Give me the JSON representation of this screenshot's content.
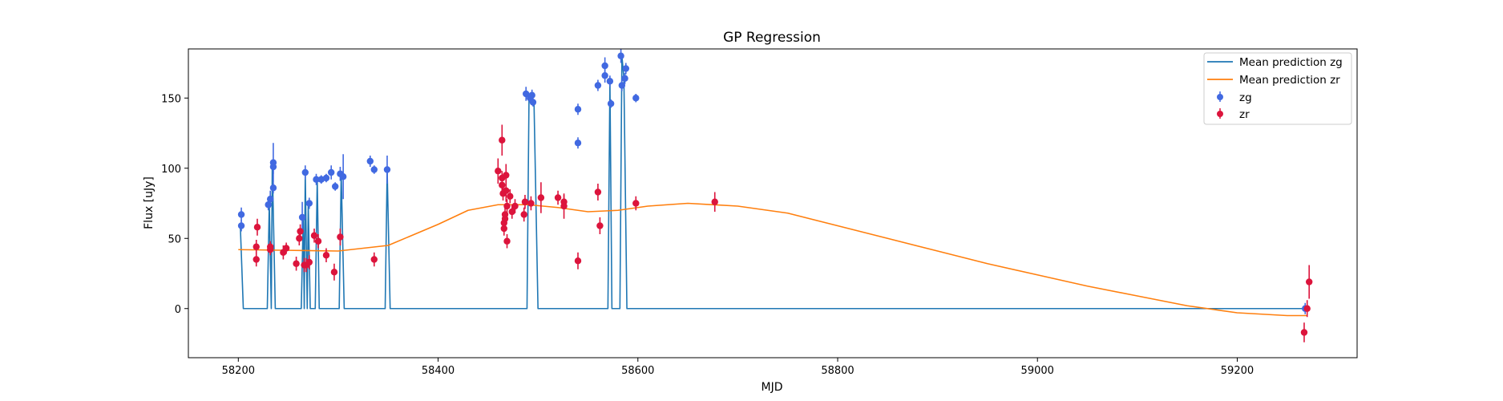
{
  "chart_data": {
    "type": "scatter",
    "title": "GP Regression",
    "xlabel": "MJD",
    "ylabel": "Flux [uJy]",
    "xlim": [
      58150,
      59320
    ],
    "ylim": [
      -35,
      185
    ],
    "xticks": [
      58200,
      58400,
      58600,
      58800,
      59000,
      59200
    ],
    "yticks": [
      0,
      50,
      100,
      150
    ],
    "grid": false,
    "legend_position": "top-right",
    "colors": {
      "zg_points": "#4169e1",
      "zr_points": "#dc143c",
      "zg_line": "#1f77b4",
      "zr_line": "#ff7f0e"
    },
    "legend": [
      {
        "label": "Mean prediction zg",
        "kind": "line",
        "color": "#1f77b4"
      },
      {
        "label": "Mean prediction zr",
        "kind": "line",
        "color": "#ff7f0e"
      },
      {
        "label": "zg",
        "kind": "point",
        "color": "#4169e1"
      },
      {
        "label": "zr",
        "kind": "point",
        "color": "#dc143c"
      }
    ],
    "series": [
      {
        "name": "zg",
        "kind": "errorbar",
        "points": [
          [
            58203,
            67,
            5
          ],
          [
            58203,
            59,
            4
          ],
          [
            58230,
            74,
            4
          ],
          [
            58232,
            78,
            6
          ],
          [
            58235,
            104,
            14
          ],
          [
            58235,
            101,
            5
          ],
          [
            58235,
            86,
            4
          ],
          [
            58264,
            65,
            11
          ],
          [
            58267,
            97,
            5
          ],
          [
            58271,
            75,
            4
          ],
          [
            58278,
            92,
            4
          ],
          [
            58283,
            92,
            3
          ],
          [
            58288,
            93,
            3
          ],
          [
            58293,
            97,
            5
          ],
          [
            58297,
            87,
            3
          ],
          [
            58302,
            96,
            5
          ],
          [
            58305,
            94,
            16
          ],
          [
            58332,
            105,
            4
          ],
          [
            58336,
            99,
            3
          ],
          [
            58349,
            99,
            10
          ],
          [
            58488,
            153,
            5
          ],
          [
            58492,
            150,
            3
          ],
          [
            58494,
            152,
            4
          ],
          [
            58495,
            147,
            3
          ],
          [
            58540,
            142,
            4
          ],
          [
            58540,
            118,
            4
          ],
          [
            58560,
            159,
            4
          ],
          [
            58567,
            166,
            5
          ],
          [
            58567,
            173,
            6
          ],
          [
            58572,
            162,
            4
          ],
          [
            58573,
            146,
            3
          ],
          [
            58583,
            180,
            5
          ],
          [
            58584,
            159,
            4
          ],
          [
            58587,
            164,
            4
          ],
          [
            58588,
            171,
            4
          ],
          [
            58598,
            150,
            3
          ],
          [
            59268,
            0,
            4
          ]
        ]
      },
      {
        "name": "zr",
        "kind": "errorbar",
        "points": [
          [
            58218,
            35,
            5
          ],
          [
            58218,
            44,
            5
          ],
          [
            58219,
            58,
            6
          ],
          [
            58232,
            42,
            4
          ],
          [
            58232,
            44,
            4
          ],
          [
            58245,
            40,
            5
          ],
          [
            58248,
            43,
            4
          ],
          [
            58258,
            32,
            5
          ],
          [
            58261,
            50,
            5
          ],
          [
            58262,
            55,
            5
          ],
          [
            58266,
            31,
            5
          ],
          [
            58268,
            31,
            5
          ],
          [
            58271,
            33,
            5
          ],
          [
            58276,
            52,
            5
          ],
          [
            58280,
            48,
            5
          ],
          [
            58288,
            38,
            5
          ],
          [
            58296,
            26,
            6
          ],
          [
            58302,
            51,
            6
          ],
          [
            58336,
            35,
            5
          ],
          [
            58460,
            98,
            9
          ],
          [
            58464,
            120,
            11
          ],
          [
            58464,
            93,
            5
          ],
          [
            58464,
            88,
            5
          ],
          [
            58465,
            82,
            5
          ],
          [
            58466,
            61,
            5
          ],
          [
            58466,
            57,
            5
          ],
          [
            58467,
            64,
            5
          ],
          [
            58467,
            67,
            5
          ],
          [
            58468,
            95,
            8
          ],
          [
            58468,
            84,
            8
          ],
          [
            58469,
            73,
            5
          ],
          [
            58469,
            48,
            5
          ],
          [
            58472,
            80,
            5
          ],
          [
            58474,
            69,
            5
          ],
          [
            58477,
            73,
            5
          ],
          [
            58486,
            67,
            5
          ],
          [
            58487,
            76,
            5
          ],
          [
            58493,
            75,
            5
          ],
          [
            58503,
            79,
            11
          ],
          [
            58520,
            79,
            5
          ],
          [
            58526,
            76,
            5
          ],
          [
            58526,
            73,
            9
          ],
          [
            58540,
            34,
            6
          ],
          [
            58560,
            83,
            6
          ],
          [
            58562,
            59,
            6
          ],
          [
            58598,
            75,
            5
          ],
          [
            58677,
            76,
            7
          ],
          [
            59267,
            -17,
            7
          ],
          [
            59270,
            0,
            6
          ],
          [
            59272,
            19,
            12
          ]
        ]
      },
      {
        "name": "Mean prediction zr",
        "kind": "line",
        "points": [
          [
            58200,
            42
          ],
          [
            58250,
            41.5
          ],
          [
            58300,
            41
          ],
          [
            58350,
            45
          ],
          [
            58400,
            60
          ],
          [
            58430,
            70
          ],
          [
            58460,
            74
          ],
          [
            58490,
            74
          ],
          [
            58520,
            72
          ],
          [
            58550,
            69
          ],
          [
            58580,
            70
          ],
          [
            58610,
            73
          ],
          [
            58650,
            75
          ],
          [
            58700,
            73
          ],
          [
            58750,
            68
          ],
          [
            58800,
            59
          ],
          [
            58850,
            50
          ],
          [
            58900,
            41
          ],
          [
            58950,
            32
          ],
          [
            59000,
            24
          ],
          [
            59050,
            16
          ],
          [
            59100,
            9
          ],
          [
            59150,
            2
          ],
          [
            59200,
            -3
          ],
          [
            59250,
            -5
          ],
          [
            59270,
            -5
          ]
        ]
      },
      {
        "name": "Mean prediction zg",
        "kind": "line",
        "points": [
          [
            58202,
            59
          ],
          [
            58205,
            0
          ],
          [
            58229,
            0
          ],
          [
            58231,
            75
          ],
          [
            58233,
            0
          ],
          [
            58234,
            104
          ],
          [
            58237,
            0
          ],
          [
            58263,
            0
          ],
          [
            58265,
            65
          ],
          [
            58266,
            0
          ],
          [
            58267,
            97
          ],
          [
            58269,
            0
          ],
          [
            58270,
            75
          ],
          [
            58272,
            0
          ],
          [
            58277,
            0
          ],
          [
            58279,
            92
          ],
          [
            58281,
            0
          ],
          [
            58301,
            0
          ],
          [
            58303,
            96
          ],
          [
            58306,
            0
          ],
          [
            58347,
            0
          ],
          [
            58349,
            99
          ],
          [
            58352,
            0
          ],
          [
            58489,
            0
          ],
          [
            58491,
            150
          ],
          [
            58493,
            150
          ],
          [
            58496,
            147
          ],
          [
            58500,
            0
          ],
          [
            58570,
            0
          ],
          [
            58572,
            162
          ],
          [
            58574,
            0
          ],
          [
            58582,
            0
          ],
          [
            58584,
            180
          ],
          [
            58586,
            164
          ],
          [
            58589,
            0
          ],
          [
            59270,
            0
          ]
        ]
      }
    ]
  }
}
